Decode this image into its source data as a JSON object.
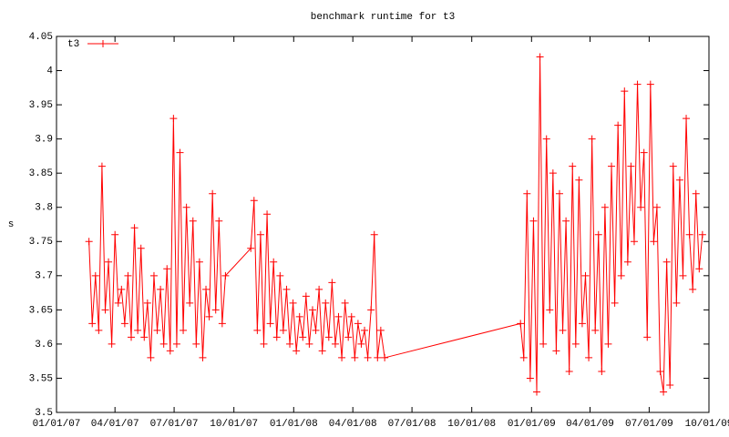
{
  "chart_data": {
    "type": "line",
    "title": "benchmark runtime for t3",
    "y_label": "s",
    "legend": "top-left",
    "grid": false,
    "xlim": [
      "2007-01-01",
      "2009-10-01"
    ],
    "xticks": [
      {
        "value": "2007-01-01",
        "label": "01/01/07"
      },
      {
        "value": "2007-04-01",
        "label": "04/01/07"
      },
      {
        "value": "2007-07-01",
        "label": "07/01/07"
      },
      {
        "value": "2007-10-01",
        "label": "10/01/07"
      },
      {
        "value": "2008-01-01",
        "label": "01/01/08"
      },
      {
        "value": "2008-04-01",
        "label": "04/01/08"
      },
      {
        "value": "2008-07-01",
        "label": "07/01/08"
      },
      {
        "value": "2008-10-01",
        "label": "10/01/08"
      },
      {
        "value": "2009-01-01",
        "label": "01/01/09"
      },
      {
        "value": "2009-04-01",
        "label": "04/01/09"
      },
      {
        "value": "2009-07-01",
        "label": "07/01/09"
      },
      {
        "value": "2009-10-01",
        "label": "10/01/09"
      }
    ],
    "ylim": [
      3.5,
      4.05
    ],
    "yticks": [
      3.5,
      3.55,
      3.6,
      3.65,
      3.7,
      3.75,
      3.8,
      3.85,
      3.9,
      3.95,
      4,
      4.05
    ],
    "x": [
      "2007-02-20",
      "2007-02-25",
      "2007-03-02",
      "2007-03-07",
      "2007-03-12",
      "2007-03-17",
      "2007-03-22",
      "2007-03-27",
      "2007-04-01",
      "2007-04-06",
      "2007-04-11",
      "2007-04-16",
      "2007-04-21",
      "2007-04-26",
      "2007-05-01",
      "2007-05-06",
      "2007-05-11",
      "2007-05-16",
      "2007-05-21",
      "2007-05-26",
      "2007-05-31",
      "2007-06-05",
      "2007-06-10",
      "2007-06-15",
      "2007-06-20",
      "2007-06-25",
      "2007-06-30",
      "2007-07-05",
      "2007-07-10",
      "2007-07-15",
      "2007-07-20",
      "2007-07-25",
      "2007-07-30",
      "2007-08-04",
      "2007-08-09",
      "2007-08-14",
      "2007-08-19",
      "2007-08-24",
      "2007-08-29",
      "2007-09-03",
      "2007-09-08",
      "2007-09-13",
      "2007-09-18",
      "2007-10-27",
      "2007-11-01",
      "2007-11-06",
      "2007-11-11",
      "2007-11-16",
      "2007-11-21",
      "2007-11-26",
      "2007-12-01",
      "2007-12-06",
      "2007-12-11",
      "2007-12-16",
      "2007-12-21",
      "2007-12-26",
      "2007-12-31",
      "2008-01-05",
      "2008-01-10",
      "2008-01-15",
      "2008-01-20",
      "2008-01-25",
      "2008-01-30",
      "2008-02-04",
      "2008-02-09",
      "2008-02-14",
      "2008-02-19",
      "2008-02-24",
      "2008-02-29",
      "2008-03-05",
      "2008-03-10",
      "2008-03-15",
      "2008-03-20",
      "2008-03-25",
      "2008-03-30",
      "2008-04-04",
      "2008-04-09",
      "2008-04-14",
      "2008-04-19",
      "2008-04-24",
      "2008-04-29",
      "2008-05-04",
      "2008-05-09",
      "2008-05-14",
      "2008-05-20",
      "2008-12-15",
      "2008-12-20",
      "2008-12-25",
      "2008-12-30",
      "2009-01-04",
      "2009-01-09",
      "2009-01-14",
      "2009-01-19",
      "2009-01-24",
      "2009-01-29",
      "2009-02-03",
      "2009-02-08",
      "2009-02-13",
      "2009-02-18",
      "2009-02-23",
      "2009-02-28",
      "2009-03-05",
      "2009-03-10",
      "2009-03-15",
      "2009-03-20",
      "2009-03-25",
      "2009-03-30",
      "2009-04-04",
      "2009-04-09",
      "2009-04-14",
      "2009-04-19",
      "2009-04-24",
      "2009-04-29",
      "2009-05-04",
      "2009-05-09",
      "2009-05-14",
      "2009-05-19",
      "2009-05-24",
      "2009-05-29",
      "2009-06-03",
      "2009-06-08",
      "2009-06-13",
      "2009-06-18",
      "2009-06-23",
      "2009-06-28",
      "2009-07-03",
      "2009-07-08",
      "2009-07-13",
      "2009-07-18",
      "2009-07-23",
      "2009-07-28",
      "2009-08-02",
      "2009-08-07",
      "2009-08-12",
      "2009-08-17",
      "2009-08-22",
      "2009-08-27",
      "2009-09-01",
      "2009-09-06",
      "2009-09-11",
      "2009-09-16",
      "2009-09-21"
    ],
    "series": [
      {
        "name": "t3",
        "color": "#ff0000",
        "values": [
          3.75,
          3.63,
          3.7,
          3.62,
          3.86,
          3.65,
          3.72,
          3.6,
          3.76,
          3.66,
          3.68,
          3.63,
          3.7,
          3.61,
          3.77,
          3.62,
          3.74,
          3.61,
          3.66,
          3.58,
          3.7,
          3.62,
          3.68,
          3.6,
          3.71,
          3.59,
          3.93,
          3.6,
          3.88,
          3.62,
          3.8,
          3.66,
          3.78,
          3.6,
          3.72,
          3.58,
          3.68,
          3.64,
          3.82,
          3.65,
          3.78,
          3.63,
          3.7,
          3.74,
          3.81,
          3.62,
          3.76,
          3.6,
          3.79,
          3.63,
          3.72,
          3.61,
          3.7,
          3.62,
          3.68,
          3.6,
          3.66,
          3.59,
          3.64,
          3.61,
          3.67,
          3.6,
          3.65,
          3.62,
          3.68,
          3.59,
          3.66,
          3.61,
          3.69,
          3.6,
          3.64,
          3.58,
          3.66,
          3.61,
          3.64,
          3.58,
          3.63,
          3.6,
          3.62,
          3.58,
          3.65,
          3.76,
          3.58,
          3.62,
          3.58,
          3.63,
          3.58,
          3.82,
          3.55,
          3.78,
          3.53,
          4.02,
          3.6,
          3.9,
          3.65,
          3.85,
          3.59,
          3.82,
          3.62,
          3.78,
          3.56,
          3.86,
          3.6,
          3.84,
          3.63,
          3.7,
          3.58,
          3.9,
          3.62,
          3.76,
          3.56,
          3.8,
          3.6,
          3.86,
          3.66,
          3.92,
          3.7,
          3.97,
          3.72,
          3.86,
          3.75,
          3.98,
          3.8,
          3.88,
          3.61,
          3.98,
          3.75,
          3.8,
          3.56,
          3.53,
          3.72,
          3.54,
          3.86,
          3.66,
          3.84,
          3.7,
          3.93,
          3.76,
          3.68,
          3.82,
          3.71,
          3.76
        ]
      }
    ]
  }
}
